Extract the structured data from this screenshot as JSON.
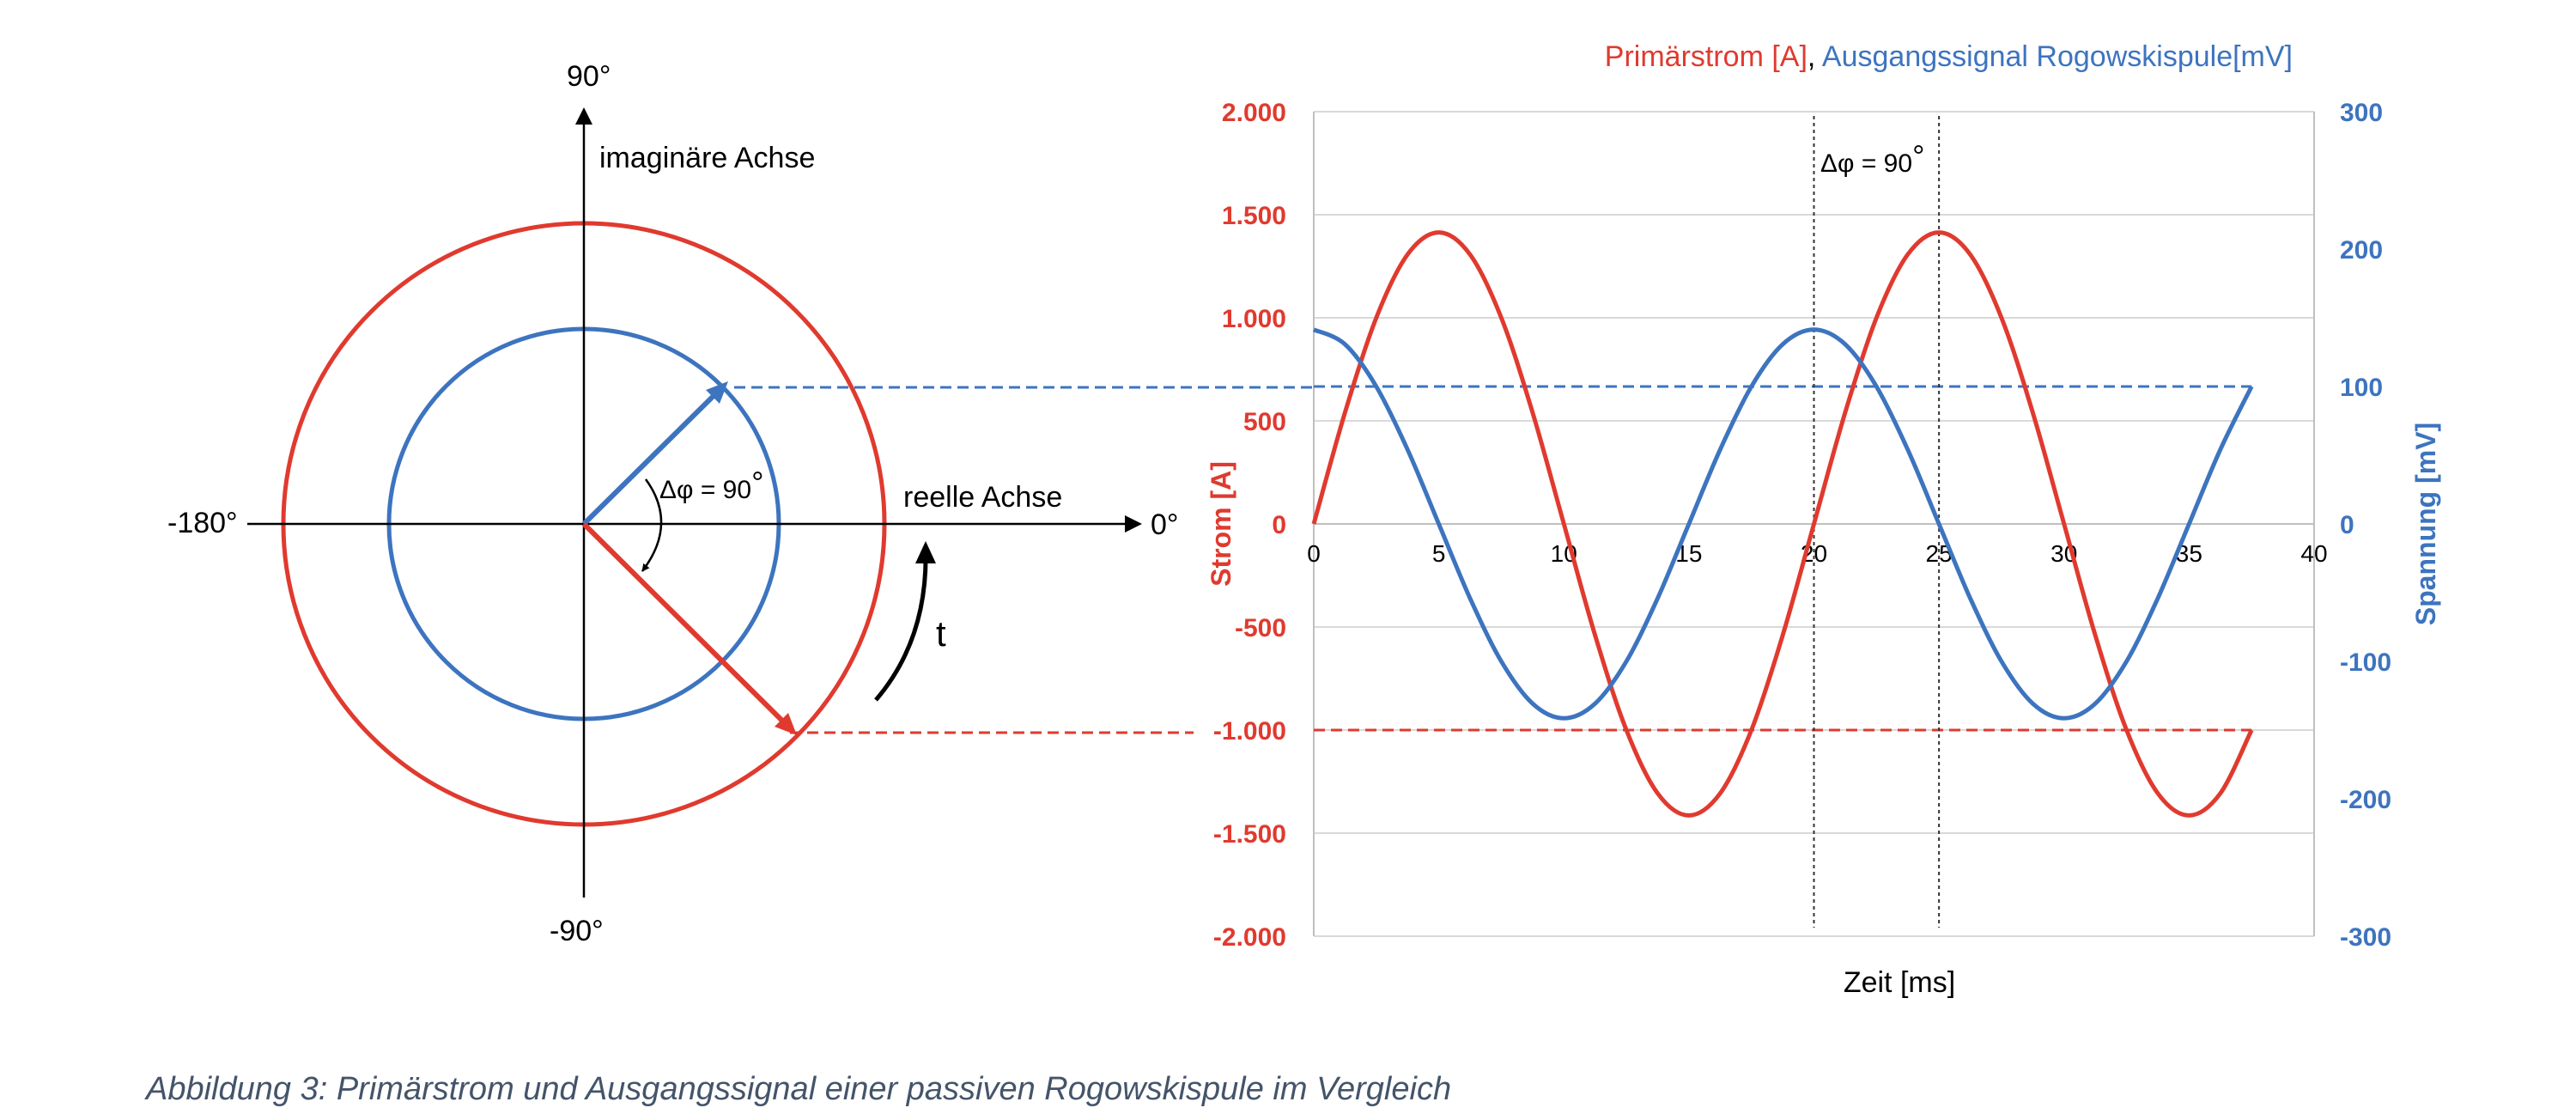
{
  "phasor": {
    "label_90": "90°",
    "label_m90": "-90°",
    "label_m180": "-180°",
    "label_0": "0°",
    "imag_axis_label": "imaginäre Achse",
    "real_axis_label": "reelle Achse",
    "phase_label": "Δφ = 90",
    "degree_sign": "°",
    "time_label": "t",
    "colors": {
      "current": "#e03a2f",
      "voltage": "#3d74bf"
    }
  },
  "chart_data": {
    "type": "line",
    "title_current": "Primärstrom [A]",
    "title_sep": ",",
    "title_voltage": " Ausgangssignal Rogowskispule[mV]",
    "xlabel": "Zeit [ms]",
    "ylabel_left": "Strom [A]",
    "ylabel_right": "Spannung [mV]",
    "xlim": [
      0,
      40
    ],
    "ylim_left": [
      -2000,
      2000
    ],
    "ylim_right": [
      -300,
      300
    ],
    "x_ticks": [
      "0",
      "5",
      "10",
      "15",
      "20",
      "25",
      "30",
      "35",
      "40"
    ],
    "y_ticks_left": [
      "2.000",
      "1.500",
      "1.000",
      "500",
      "0",
      "-500",
      "-1.000",
      "-1.500",
      "-2.000"
    ],
    "y_ticks_right": [
      "300",
      "200",
      "100",
      "0",
      "-100",
      "-200",
      "-300"
    ],
    "grid": true,
    "annotation": "Δφ = 90",
    "annotation_degree": "°",
    "series": [
      {
        "name": "Primärstrom [A]",
        "axis": "left",
        "color": "#e03a2f",
        "x": [
          0,
          1.25,
          2.5,
          3.75,
          5,
          6.25,
          7.5,
          8.75,
          10,
          11.25,
          12.5,
          13.75,
          15,
          16.25,
          17.5,
          18.75,
          20,
          21.25,
          22.5,
          23.75,
          25,
          26.25,
          27.5,
          28.75,
          30,
          31.25,
          32.5,
          33.75,
          35,
          36.25,
          37.5
        ],
        "y": [
          0,
          541,
          1000,
          1307,
          1414,
          1307,
          1000,
          541,
          0,
          -541,
          -1000,
          -1307,
          -1414,
          -1307,
          -1000,
          -541,
          0,
          541,
          1000,
          1307,
          1414,
          1307,
          1000,
          541,
          0,
          -541,
          -1000,
          -1307,
          -1414,
          -1307,
          -1000
        ]
      },
      {
        "name": "Ausgangssignal Rogowskispule[mV]",
        "axis": "right",
        "color": "#3d74bf",
        "x": [
          0,
          1.25,
          2.5,
          3.75,
          5,
          6.25,
          7.5,
          8.75,
          10,
          11.25,
          12.5,
          13.75,
          15,
          16.25,
          17.5,
          18.75,
          20,
          21.25,
          22.5,
          23.75,
          25,
          26.25,
          27.5,
          28.75,
          30,
          31.25,
          32.5,
          33.75,
          35,
          36.25,
          37.5
        ],
        "y": [
          141.4,
          130.7,
          100,
          54.1,
          0,
          -54.1,
          -100,
          -130.7,
          -141.4,
          -130.7,
          -100,
          -54.1,
          0,
          54.1,
          100,
          130.7,
          141.4,
          130.7,
          100,
          54.1,
          0,
          -54.1,
          -100,
          -130.7,
          -141.4,
          -130.7,
          -100,
          -54.1,
          0,
          54.1,
          100
        ]
      }
    ],
    "reference_lines": [
      {
        "axis": "left",
        "value": -1000,
        "color": "#e03a2f"
      },
      {
        "axis": "right",
        "value": 100,
        "color": "#3d74bf"
      }
    ],
    "vertical_markers": [
      20,
      25
    ]
  },
  "caption": "Abbildung 3: Primärstrom und Ausgangssignal einer passiven Rogowskispule im Vergleich"
}
